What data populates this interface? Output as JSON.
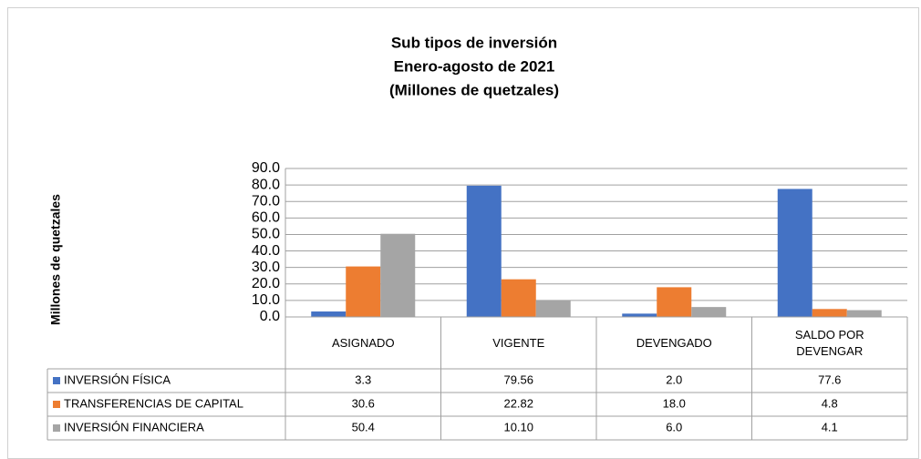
{
  "chart_data": {
    "type": "bar",
    "title": "Sub tipos de inversión",
    "subtitle": "Enero-agosto de 2021",
    "unit_note": "(Millones de quetzales)",
    "y_label": "Millones de quetzales",
    "categories": [
      "ASIGNADO",
      "VIGENTE",
      "DEVENGADO",
      "SALDO POR DEVENGAR"
    ],
    "series": [
      {
        "name": "INVERSIÓN FÍSICA",
        "color": "#4472c4",
        "values": [
          3.3,
          79.56,
          2.0,
          77.6
        ],
        "value_labels": [
          "3.3",
          "79.56",
          "2.0",
          "77.6"
        ]
      },
      {
        "name": "TRANSFERENCIAS DE CAPITAL",
        "color": "#ed7d31",
        "values": [
          30.6,
          22.82,
          18.0,
          4.8
        ],
        "value_labels": [
          "30.6",
          "22.82",
          "18.0",
          "4.8"
        ]
      },
      {
        "name": "INVERSIÓN FINANCIERA",
        "color": "#a5a5a5",
        "values": [
          50.4,
          10.1,
          6.0,
          4.1
        ],
        "value_labels": [
          "50.4",
          "10.10",
          "6.0",
          "4.1"
        ]
      }
    ],
    "ylim": [
      0,
      90
    ],
    "yticks": [
      {
        "value": 0,
        "label": "0.0"
      },
      {
        "value": 10,
        "label": "10.0"
      },
      {
        "value": 20,
        "label": "20.0"
      },
      {
        "value": 30,
        "label": "30.0"
      },
      {
        "value": 40,
        "label": "40.0"
      },
      {
        "value": 50,
        "label": "50.0"
      },
      {
        "value": 60,
        "label": "60.0"
      },
      {
        "value": 70,
        "label": "70.0"
      },
      {
        "value": 80,
        "label": "80.0"
      },
      {
        "value": 90,
        "label": "90.0"
      }
    ],
    "grid": true,
    "legend": "data-table"
  }
}
